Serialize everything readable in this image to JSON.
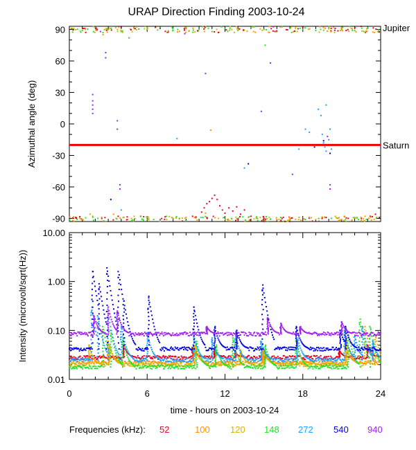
{
  "chart_data": [
    {
      "type": "scatter",
      "title": "URAP Direction Finding  2003-10-24",
      "ylabel": "Azimuthal angle (deg)",
      "xlim": [
        0,
        24
      ],
      "ylim": [
        -93,
        93
      ],
      "yticks": [
        "90",
        "60",
        "30",
        "0",
        "-30",
        "-60",
        "-90"
      ],
      "reference_lines": [
        {
          "label": "Jupiter",
          "y": 91,
          "color": "#000000"
        },
        {
          "label": "Saturn",
          "y": -20,
          "color": "#ee0000"
        }
      ],
      "series": [
        {
          "name": "52",
          "color": "#e8001c",
          "points": [
            [
              0.5,
              -89
            ],
            [
              1.2,
              91
            ],
            [
              2.5,
              -90
            ],
            [
              4.0,
              92
            ],
            [
              5.5,
              -88
            ],
            [
              7.0,
              91
            ],
            [
              9.5,
              -88
            ],
            [
              10.2,
              -84
            ],
            [
              10.4,
              -80
            ],
            [
              10.6,
              -76
            ],
            [
              10.8,
              -74
            ],
            [
              11.0,
              -71
            ],
            [
              11.2,
              -68
            ],
            [
              11.4,
              -72
            ],
            [
              11.6,
              -78
            ],
            [
              11.8,
              -82
            ],
            [
              12.0,
              -85
            ],
            [
              12.3,
              -80
            ],
            [
              12.6,
              -83
            ],
            [
              12.9,
              -79
            ],
            [
              13.2,
              -86
            ],
            [
              13.5,
              -82
            ],
            [
              14.0,
              -88
            ],
            [
              15.0,
              -90
            ],
            [
              16.5,
              -89
            ],
            [
              18.0,
              92
            ],
            [
              19.5,
              -89
            ],
            [
              20.5,
              91
            ],
            [
              21.5,
              -90
            ],
            [
              22.5,
              93
            ],
            [
              23.2,
              -88
            ],
            [
              23.6,
              -86
            ],
            [
              23.9,
              -89
            ]
          ]
        },
        {
          "name": "100",
          "color": "#ff9400",
          "points": [
            [
              0.3,
              -92
            ],
            [
              1.8,
              -88
            ],
            [
              2.6,
              85
            ],
            [
              3.4,
              -86
            ],
            [
              4.5,
              -91
            ],
            [
              6.0,
              92
            ],
            [
              8.0,
              -90
            ],
            [
              10.5,
              -85
            ],
            [
              10.9,
              -6
            ],
            [
              12.5,
              -90
            ],
            [
              14.2,
              88
            ],
            [
              16.0,
              -91
            ],
            [
              18.5,
              -89
            ],
            [
              21.0,
              92
            ],
            [
              22.8,
              -88
            ]
          ]
        },
        {
          "name": "120",
          "color": "#d6b400",
          "points": [
            [
              0.8,
              -90
            ],
            [
              1.6,
              -86
            ],
            [
              2.7,
              90
            ],
            [
              3.6,
              -90
            ],
            [
              5.0,
              -88
            ],
            [
              7.5,
              -91
            ],
            [
              9.0,
              -89
            ],
            [
              11.5,
              -90
            ],
            [
              13.8,
              -89
            ],
            [
              15.5,
              -91
            ],
            [
              17.0,
              -90
            ],
            [
              19.0,
              -91
            ],
            [
              20.5,
              -88
            ],
            [
              22.0,
              -89
            ],
            [
              23.5,
              -91
            ]
          ]
        },
        {
          "name": "148",
          "color": "#22e22a",
          "points": [
            [
              0.2,
              91
            ],
            [
              1.0,
              89
            ],
            [
              2.0,
              92
            ],
            [
              3.0,
              90
            ],
            [
              4.0,
              88
            ],
            [
              5.0,
              91
            ],
            [
              6.0,
              90
            ],
            [
              7.0,
              92
            ],
            [
              8.0,
              89
            ],
            [
              9.0,
              91
            ],
            [
              10.0,
              90
            ],
            [
              11.0,
              88
            ],
            [
              12.0,
              91
            ],
            [
              13.0,
              89
            ],
            [
              14.0,
              92
            ],
            [
              15.0,
              90
            ],
            [
              16.0,
              88
            ],
            [
              17.0,
              91
            ],
            [
              18.0,
              90
            ],
            [
              19.0,
              89
            ],
            [
              20.0,
              91
            ],
            [
              21.0,
              90
            ],
            [
              22.0,
              89
            ],
            [
              23.0,
              91
            ],
            [
              23.8,
              88
            ],
            [
              0.6,
              -91
            ],
            [
              2.2,
              -90
            ],
            [
              4.2,
              -89
            ],
            [
              6.5,
              -91
            ],
            [
              8.5,
              -90
            ],
            [
              10.3,
              -89
            ],
            [
              12.2,
              -91
            ],
            [
              14.5,
              -90
            ],
            [
              16.3,
              -89
            ],
            [
              18.2,
              -91
            ],
            [
              20.2,
              -90
            ],
            [
              22.3,
              -91
            ],
            [
              23.7,
              -89
            ],
            [
              15.1,
              75
            ],
            [
              4.6,
              82
            ]
          ]
        },
        {
          "name": "272",
          "color": "#1ba0ff",
          "points": [
            [
              4.0,
              -82
            ],
            [
              8.3,
              -14
            ],
            [
              13.5,
              -42
            ],
            [
              17.7,
              -24
            ],
            [
              18.2,
              -5
            ],
            [
              18.5,
              -8
            ],
            [
              19.2,
              14
            ],
            [
              19.4,
              8
            ],
            [
              19.5,
              -10
            ],
            [
              19.6,
              -18
            ],
            [
              19.7,
              -22
            ],
            [
              19.8,
              -26
            ],
            [
              19.9,
              -20
            ],
            [
              20.0,
              -15
            ],
            [
              20.1,
              -5
            ],
            [
              20.2,
              -24
            ],
            [
              19.8,
              18
            ],
            [
              22.0,
              -20
            ]
          ]
        },
        {
          "name": "540",
          "color": "#0000dd",
          "points": [
            [
              3.2,
              -72
            ],
            [
              13.8,
              -38
            ],
            [
              19.6,
              -16
            ],
            [
              20.1,
              -28
            ],
            [
              18.9,
              -22
            ]
          ]
        },
        {
          "name": "940",
          "color": "#a020f0",
          "points": [
            [
              1.8,
              28
            ],
            [
              1.8,
              22
            ],
            [
              1.8,
              18
            ],
            [
              1.8,
              14
            ],
            [
              1.8,
              10
            ],
            [
              2.8,
              68
            ],
            [
              2.8,
              63
            ],
            [
              3.7,
              3
            ],
            [
              3.7,
              -5
            ],
            [
              3.9,
              -58
            ],
            [
              3.9,
              -62
            ],
            [
              10.5,
              48
            ],
            [
              14.8,
              12
            ],
            [
              15.5,
              58
            ],
            [
              20.1,
              -58
            ],
            [
              20.1,
              -62
            ],
            [
              19.9,
              -12
            ],
            [
              17.2,
              -48
            ],
            [
              2.4,
              88
            ],
            [
              8.9,
              86
            ]
          ]
        }
      ]
    },
    {
      "type": "scatter",
      "ylabel": "Intensity (microvolt/sqrt(Hz))",
      "xlabel": "time - hours on 2003-10-24",
      "xlim": [
        0,
        24
      ],
      "xticks": [
        "0",
        "6",
        "12",
        "18",
        "24"
      ],
      "ylim": [
        0.01,
        10
      ],
      "yscale": "log",
      "yticks": [
        "10.00",
        "1.00",
        "0.10",
        "0.01"
      ],
      "legend": {
        "label": "Frequencies (kHz):",
        "placement": "bottom"
      },
      "series": [
        {
          "name": "52",
          "color": "#e8001c",
          "baseline": 0.028,
          "bursts": [
            [
              4.2,
              0.05
            ],
            [
              9.5,
              0.045
            ],
            [
              11.2,
              0.04
            ],
            [
              12.8,
              0.035
            ],
            [
              20.8,
              0.04
            ],
            [
              23.0,
              0.05
            ]
          ]
        },
        {
          "name": "100",
          "color": "#ff9400",
          "baseline": 0.022,
          "bursts": [
            [
              3.0,
              0.06
            ],
            [
              9.6,
              0.05
            ],
            [
              14.9,
              0.04
            ],
            [
              21.3,
              0.05
            ]
          ]
        },
        {
          "name": "120",
          "color": "#d6b400",
          "baseline": 0.02,
          "bursts": [
            [
              1.5,
              0.05
            ],
            [
              3.1,
              0.05
            ],
            [
              9.7,
              0.05
            ],
            [
              13.2,
              0.04
            ],
            [
              15.0,
              0.04
            ],
            [
              21.4,
              0.06
            ],
            [
              22.8,
              0.12
            ],
            [
              23.6,
              0.08
            ]
          ]
        },
        {
          "name": "148",
          "color": "#22e22a",
          "baseline": 0.018,
          "bursts": [
            [
              2.6,
              0.12
            ],
            [
              3.2,
              0.1
            ],
            [
              4.1,
              0.07
            ],
            [
              9.8,
              0.06
            ],
            [
              11.3,
              0.05
            ],
            [
              12.6,
              0.07
            ],
            [
              15.1,
              0.05
            ],
            [
              17.5,
              0.06
            ],
            [
              21.5,
              0.09
            ],
            [
              22.4,
              0.17
            ],
            [
              23.2,
              0.12
            ]
          ]
        },
        {
          "name": "272",
          "color": "#1ba0ff",
          "baseline": 0.025,
          "bursts": [
            [
              1.7,
              0.3
            ],
            [
              2.2,
              0.2
            ],
            [
              3.0,
              0.22
            ],
            [
              4.0,
              0.12
            ],
            [
              6.0,
              0.09
            ],
            [
              9.6,
              0.08
            ],
            [
              11.0,
              0.07
            ],
            [
              12.8,
              0.08
            ],
            [
              14.8,
              0.06
            ],
            [
              17.6,
              0.07
            ],
            [
              21.2,
              0.1
            ],
            [
              22.0,
              0.08
            ],
            [
              22.6,
              0.12
            ],
            [
              23.4,
              0.06
            ]
          ]
        },
        {
          "name": "540",
          "color": "#0000dd",
          "baseline": 0.042,
          "bursts": [
            [
              1.8,
              1.6
            ],
            [
              2.3,
              0.9
            ],
            [
              2.9,
              1.9
            ],
            [
              3.8,
              1.6
            ],
            [
              4.2,
              0.4
            ],
            [
              6.1,
              0.5
            ],
            [
              9.6,
              0.3
            ],
            [
              11.2,
              0.12
            ],
            [
              12.9,
              0.1
            ],
            [
              14.9,
              0.85
            ],
            [
              17.5,
              0.12
            ],
            [
              20.9,
              0.1
            ],
            [
              21.3,
              0.12
            ]
          ]
        },
        {
          "name": "940",
          "color": "#a020f0",
          "baseline": 0.085,
          "bursts": [
            [
              1.9,
              0.2
            ],
            [
              3.0,
              0.3
            ],
            [
              3.7,
              0.25
            ],
            [
              10.6,
              0.12
            ],
            [
              15.3,
              0.18
            ],
            [
              16.3,
              0.14
            ],
            [
              17.8,
              0.12
            ],
            [
              21.0,
              0.15
            ]
          ]
        }
      ]
    }
  ]
}
